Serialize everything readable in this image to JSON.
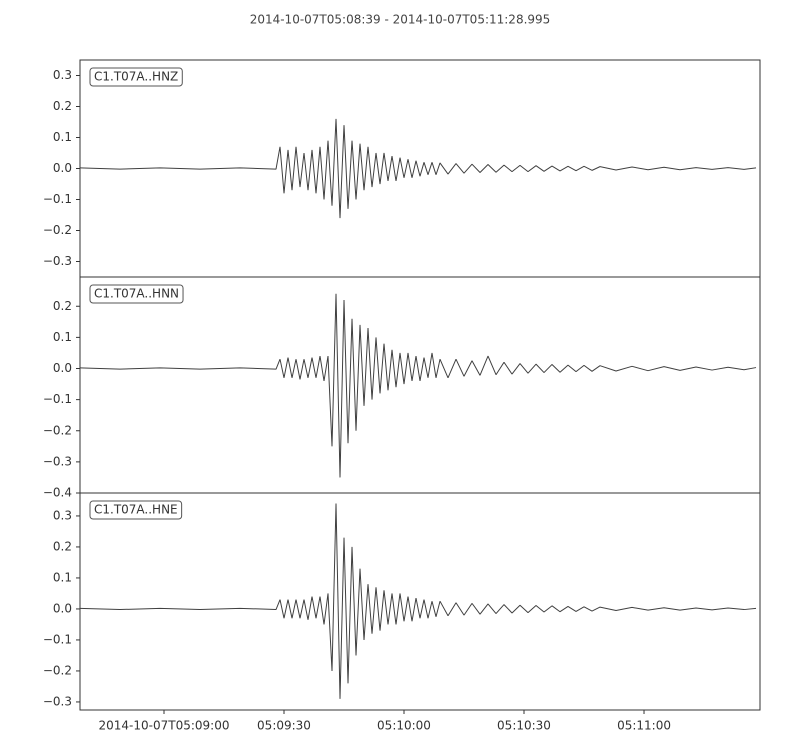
{
  "title": "2014-10-07T05:08:39  -  2014-10-07T05:11:28.995",
  "chart_data": [
    {
      "type": "line",
      "label": "C1.T07A..HNZ",
      "color": "#404040",
      "xlim": [
        0,
        169.995
      ],
      "ylim": [
        -0.35,
        0.35
      ],
      "yticks": [
        {
          "value": -0.3,
          "label": "−0.3"
        },
        {
          "value": -0.2,
          "label": "−0.2"
        },
        {
          "value": -0.1,
          "label": "−0.1"
        },
        {
          "value": 0,
          "label": "0.0"
        },
        {
          "value": 0.1,
          "label": "0.1"
        },
        {
          "value": 0.2,
          "label": "0.2"
        },
        {
          "value": 0.3,
          "label": "0.3"
        }
      ],
      "x": [
        0,
        10,
        20,
        30,
        40,
        49,
        50,
        51,
        52,
        53,
        54,
        55,
        56,
        57,
        58,
        59,
        60,
        61,
        62,
        63,
        64,
        65,
        66,
        67,
        68,
        69,
        70,
        71,
        72,
        73,
        74,
        75,
        76,
        77,
        78,
        79,
        80,
        81,
        82,
        83,
        84,
        85,
        86,
        87,
        88,
        89,
        90,
        92,
        94,
        96,
        98,
        100,
        102,
        104,
        106,
        108,
        110,
        112,
        114,
        116,
        118,
        120,
        122,
        124,
        126,
        128,
        130,
        134,
        138,
        142,
        146,
        150,
        154,
        158,
        162,
        166,
        169
      ],
      "values": [
        0.002,
        -0.002,
        0.002,
        -0.002,
        0.002,
        -0.002,
        0.07,
        -0.08,
        0.06,
        -0.07,
        0.07,
        -0.06,
        0.05,
        -0.07,
        0.06,
        -0.08,
        0.07,
        -0.1,
        0.09,
        -0.12,
        0.16,
        -0.16,
        0.14,
        -0.13,
        0.09,
        -0.1,
        0.08,
        -0.07,
        0.07,
        -0.06,
        0.05,
        -0.05,
        0.05,
        -0.04,
        0.04,
        -0.04,
        0.035,
        -0.03,
        0.03,
        -0.03,
        0.025,
        -0.025,
        0.02,
        -0.02,
        0.02,
        -0.02,
        0.018,
        -0.018,
        0.016,
        -0.015,
        0.014,
        -0.013,
        0.013,
        -0.012,
        0.011,
        -0.01,
        0.01,
        -0.01,
        0.009,
        -0.009,
        0.008,
        -0.008,
        0.007,
        -0.007,
        0.007,
        -0.006,
        0.006,
        -0.005,
        0.005,
        -0.004,
        0.004,
        -0.004,
        0.003,
        -0.003,
        0.003,
        -0.003,
        0.002
      ]
    },
    {
      "type": "line",
      "label": "C1.T07A..HNN",
      "color": "#404040",
      "xlim": [
        0,
        169.995
      ],
      "ylim": [
        -0.4,
        0.294
      ],
      "yticks": [
        {
          "value": -0.4,
          "label": "−0.4"
        },
        {
          "value": -0.3,
          "label": "−0.3"
        },
        {
          "value": -0.2,
          "label": "−0.2"
        },
        {
          "value": -0.1,
          "label": "−0.1"
        },
        {
          "value": 0,
          "label": "0.0"
        },
        {
          "value": 0.1,
          "label": "0.1"
        },
        {
          "value": 0.2,
          "label": "0.2"
        }
      ],
      "x": [
        0,
        10,
        20,
        30,
        40,
        49,
        50,
        51,
        52,
        53,
        54,
        55,
        56,
        57,
        58,
        59,
        60,
        61,
        62,
        63,
        64,
        65,
        66,
        67,
        68,
        69,
        70,
        71,
        72,
        73,
        74,
        75,
        76,
        77,
        78,
        79,
        80,
        81,
        82,
        83,
        84,
        85,
        86,
        87,
        88,
        89,
        90,
        92,
        94,
        96,
        98,
        100,
        102,
        104,
        106,
        108,
        110,
        112,
        114,
        116,
        118,
        120,
        122,
        124,
        126,
        128,
        130,
        134,
        138,
        142,
        146,
        150,
        154,
        158,
        162,
        166,
        169
      ],
      "values": [
        0.002,
        -0.002,
        0.002,
        -0.002,
        0.002,
        -0.002,
        0.03,
        -0.03,
        0.035,
        -0.03,
        0.03,
        -0.035,
        0.03,
        -0.03,
        0.035,
        -0.03,
        0.04,
        -0.04,
        0.04,
        -0.25,
        0.24,
        -0.35,
        0.22,
        -0.24,
        0.16,
        -0.2,
        0.14,
        -0.12,
        0.13,
        -0.1,
        0.1,
        -0.08,
        0.08,
        -0.07,
        0.06,
        -0.06,
        0.05,
        -0.05,
        0.05,
        -0.04,
        0.04,
        -0.04,
        0.035,
        -0.03,
        0.05,
        -0.03,
        0.03,
        -0.03,
        0.03,
        -0.025,
        0.025,
        -0.022,
        0.04,
        -0.02,
        0.02,
        -0.018,
        0.016,
        -0.015,
        0.014,
        -0.013,
        0.013,
        -0.012,
        0.011,
        -0.01,
        0.01,
        -0.009,
        0.009,
        -0.008,
        0.007,
        -0.007,
        0.006,
        -0.006,
        0.005,
        -0.005,
        0.004,
        -0.004,
        0.003
      ]
    },
    {
      "type": "line",
      "label": "C1.T07A..HNE",
      "color": "#404040",
      "xlim": [
        0,
        169.995
      ],
      "ylim": [
        -0.326,
        0.374
      ],
      "xticks": [
        {
          "value": 21,
          "label": "2014-10-07T05:09:00"
        },
        {
          "value": 51,
          "label": "05:09:30"
        },
        {
          "value": 81,
          "label": "05:10:00"
        },
        {
          "value": 111,
          "label": "05:10:30"
        },
        {
          "value": 141,
          "label": "05:11:00"
        }
      ],
      "yticks": [
        {
          "value": -0.3,
          "label": "−0.3"
        },
        {
          "value": -0.2,
          "label": "−0.2"
        },
        {
          "value": -0.1,
          "label": "−0.1"
        },
        {
          "value": 0,
          "label": "0.0"
        },
        {
          "value": 0.1,
          "label": "0.1"
        },
        {
          "value": 0.2,
          "label": "0.2"
        },
        {
          "value": 0.3,
          "label": "0.3"
        }
      ],
      "x": [
        0,
        10,
        20,
        30,
        40,
        49,
        50,
        51,
        52,
        53,
        54,
        55,
        56,
        57,
        58,
        59,
        60,
        61,
        62,
        63,
        64,
        65,
        66,
        67,
        68,
        69,
        70,
        71,
        72,
        73,
        74,
        75,
        76,
        77,
        78,
        79,
        80,
        81,
        82,
        83,
        84,
        85,
        86,
        87,
        88,
        89,
        90,
        92,
        94,
        96,
        98,
        100,
        102,
        104,
        106,
        108,
        110,
        112,
        114,
        116,
        118,
        120,
        122,
        124,
        126,
        128,
        130,
        134,
        138,
        142,
        146,
        150,
        154,
        158,
        162,
        166,
        169
      ],
      "values": [
        0.002,
        -0.002,
        0.002,
        -0.002,
        0.002,
        -0.002,
        0.03,
        -0.03,
        0.03,
        -0.03,
        0.03,
        -0.03,
        0.03,
        -0.035,
        0.04,
        -0.03,
        0.04,
        -0.05,
        0.05,
        -0.2,
        0.34,
        -0.29,
        0.23,
        -0.24,
        0.2,
        -0.15,
        0.13,
        -0.1,
        0.08,
        -0.08,
        0.07,
        -0.07,
        0.06,
        -0.05,
        0.05,
        -0.05,
        0.05,
        -0.04,
        0.04,
        -0.04,
        0.035,
        -0.03,
        0.03,
        -0.03,
        0.025,
        -0.025,
        0.025,
        -0.022,
        0.02,
        -0.02,
        0.018,
        -0.017,
        0.016,
        -0.015,
        0.014,
        -0.013,
        0.012,
        -0.012,
        0.011,
        -0.01,
        0.01,
        -0.009,
        0.008,
        -0.008,
        0.007,
        -0.007,
        0.006,
        -0.005,
        0.005,
        -0.004,
        0.004,
        -0.004,
        0.003,
        -0.003,
        0.003,
        -0.002,
        0.002
      ]
    }
  ]
}
